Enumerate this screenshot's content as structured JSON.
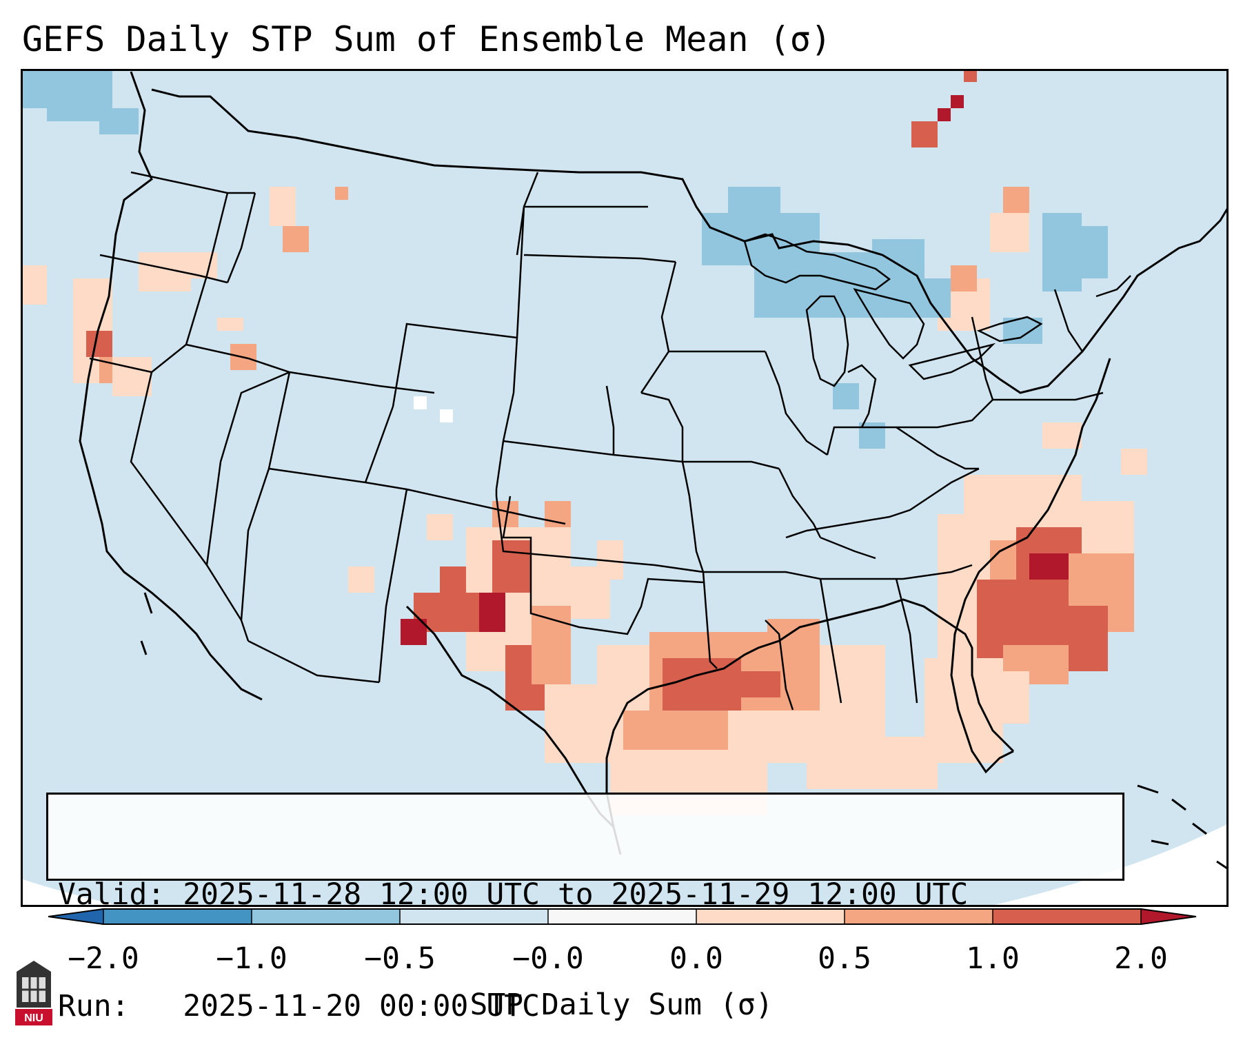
{
  "title": "GEFS Daily STP Sum of Ensemble Mean (σ)",
  "info": {
    "valid_line": "Valid: 2025-11-28 12:00 UTC to 2025-11-29 12:00 UTC",
    "run_line": "Run:   2025-11-20 00:00 UTC"
  },
  "colorbar": {
    "label": "STP Daily Sum (σ)",
    "ticks": [
      "−2.0",
      "−1.0",
      "−0.5",
      "−0.0",
      "0.0",
      "0.5",
      "1.0",
      "2.0"
    ],
    "colors": {
      "below_min": "#2166ac",
      "bins": [
        "#4393c3",
        "#92c5de",
        "#d1e5f0",
        "#f7f7f7",
        "#fddbc7",
        "#f4a582",
        "#d6604d"
      ],
      "above_max": "#b2182b"
    }
  },
  "map": {
    "background_color": "#d1e5f0",
    "boundary_color": "#000000",
    "logo_text": "NIU"
  }
}
